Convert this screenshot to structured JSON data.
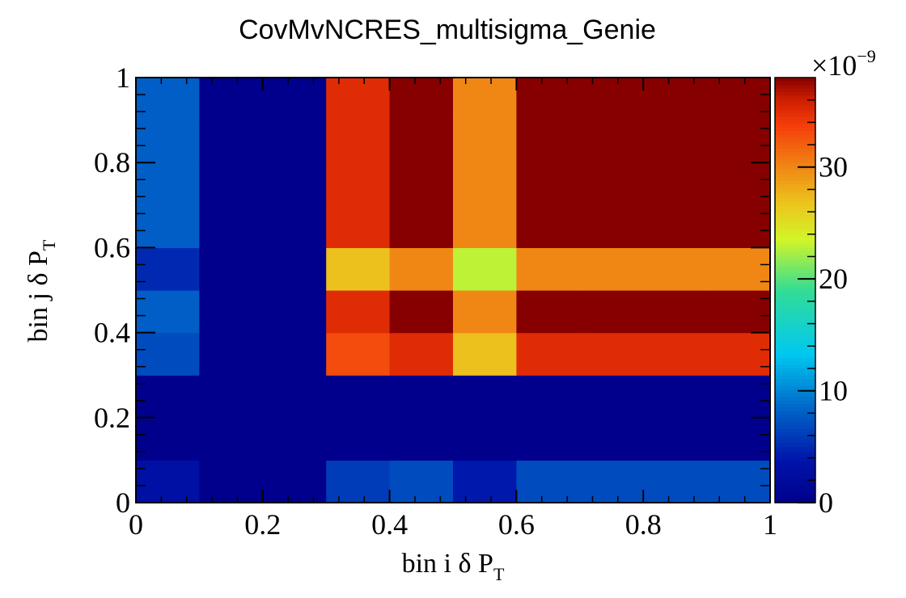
{
  "chart_data": {
    "type": "heatmap",
    "title": "CovMvNCRES_multisigma_Genie",
    "xlabel": {
      "main": "bin i  δ P",
      "sub": "T"
    },
    "ylabel": {
      "main": "bin j δ P",
      "sub": "T"
    },
    "x_edges": [
      0,
      0.1,
      0.2,
      0.3,
      0.4,
      0.5,
      0.6,
      0.7,
      0.8,
      0.9,
      1.0
    ],
    "y_edges": [
      0,
      0.1,
      0.2,
      0.3,
      0.4,
      0.5,
      0.6,
      0.7,
      0.8,
      0.9,
      1.0
    ],
    "xlim": [
      0,
      1
    ],
    "ylim": [
      0,
      1
    ],
    "x_tick_labels": [
      "0",
      "0.2",
      "0.4",
      "0.6",
      "0.8",
      "1"
    ],
    "y_tick_labels": [
      "0",
      "0.2",
      "0.4",
      "0.6",
      "0.8",
      "1"
    ],
    "z_range": [
      0,
      38
    ],
    "z_multiplier": {
      "base": "×10",
      "exponent": "−9"
    },
    "colorbar_tick_labels": [
      "0",
      "10",
      "20",
      "30"
    ],
    "colorbar_tick_values": [
      0,
      10,
      20,
      30
    ],
    "values_rows_bottom_to_top": [
      [
        3,
        0,
        0,
        6,
        7,
        4,
        7,
        7,
        7,
        7
      ],
      [
        0,
        0,
        0,
        0,
        0,
        0,
        0,
        0,
        0,
        0
      ],
      [
        0,
        0,
        0,
        0,
        0,
        0,
        0,
        0,
        0,
        0
      ],
      [
        7,
        0,
        0,
        33,
        35,
        27,
        35,
        35,
        35,
        35
      ],
      [
        8,
        0,
        0,
        35,
        38,
        30,
        38,
        38,
        38,
        38
      ],
      [
        5,
        0,
        0,
        27,
        30,
        23,
        30,
        30,
        30,
        30
      ],
      [
        8,
        0,
        0,
        35,
        38,
        30,
        38,
        38,
        38,
        38
      ],
      [
        8,
        0,
        0,
        35,
        38,
        30,
        38,
        38,
        38,
        38
      ],
      [
        8,
        0,
        0,
        35,
        38,
        30,
        38,
        38,
        38,
        38
      ],
      [
        8,
        0,
        0,
        35,
        38,
        30,
        38,
        38,
        38,
        38
      ]
    ]
  }
}
